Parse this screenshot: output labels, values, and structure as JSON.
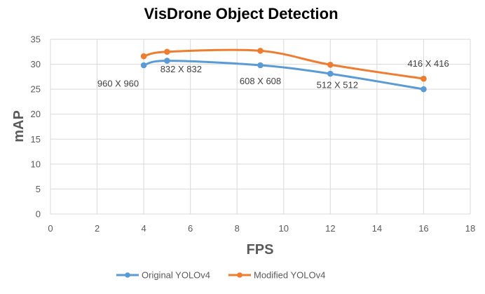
{
  "chart_data": {
    "type": "line",
    "title": "VisDrone Object Detection",
    "xlabel": "FPS",
    "ylabel": "mAP",
    "xlim": [
      0,
      18
    ],
    "ylim": [
      0,
      35
    ],
    "xticks": [
      0,
      2,
      4,
      6,
      8,
      10,
      12,
      14,
      16,
      18
    ],
    "yticks": [
      0,
      5,
      10,
      15,
      20,
      25,
      30,
      35
    ],
    "grid": true,
    "smooth": true,
    "legend_position": "bottom",
    "series": [
      {
        "name": "Original YOLOv4",
        "color": "#5b9bd5",
        "points": [
          {
            "x": 4,
            "y": 29.8
          },
          {
            "x": 5,
            "y": 30.7
          },
          {
            "x": 9,
            "y": 29.8
          },
          {
            "x": 12,
            "y": 28.1
          },
          {
            "x": 16,
            "y": 25.0
          }
        ]
      },
      {
        "name": "Modified YOLOv4",
        "color": "#ed7d31",
        "points": [
          {
            "x": 4,
            "y": 31.6
          },
          {
            "x": 5,
            "y": 32.5
          },
          {
            "x": 9,
            "y": 32.7
          },
          {
            "x": 12,
            "y": 29.9
          },
          {
            "x": 16,
            "y": 27.1
          }
        ]
      }
    ],
    "annotations": [
      {
        "text": "960 X 960",
        "x": 2.9,
        "y": 25.5
      },
      {
        "text": "832 X 832",
        "x": 5.6,
        "y": 28.4
      },
      {
        "text": "608 X 608",
        "x": 9.0,
        "y": 26.0
      },
      {
        "text": "512 X 512",
        "x": 12.3,
        "y": 25.2
      },
      {
        "text": "416 X 416",
        "x": 16.2,
        "y": 29.5
      }
    ]
  }
}
